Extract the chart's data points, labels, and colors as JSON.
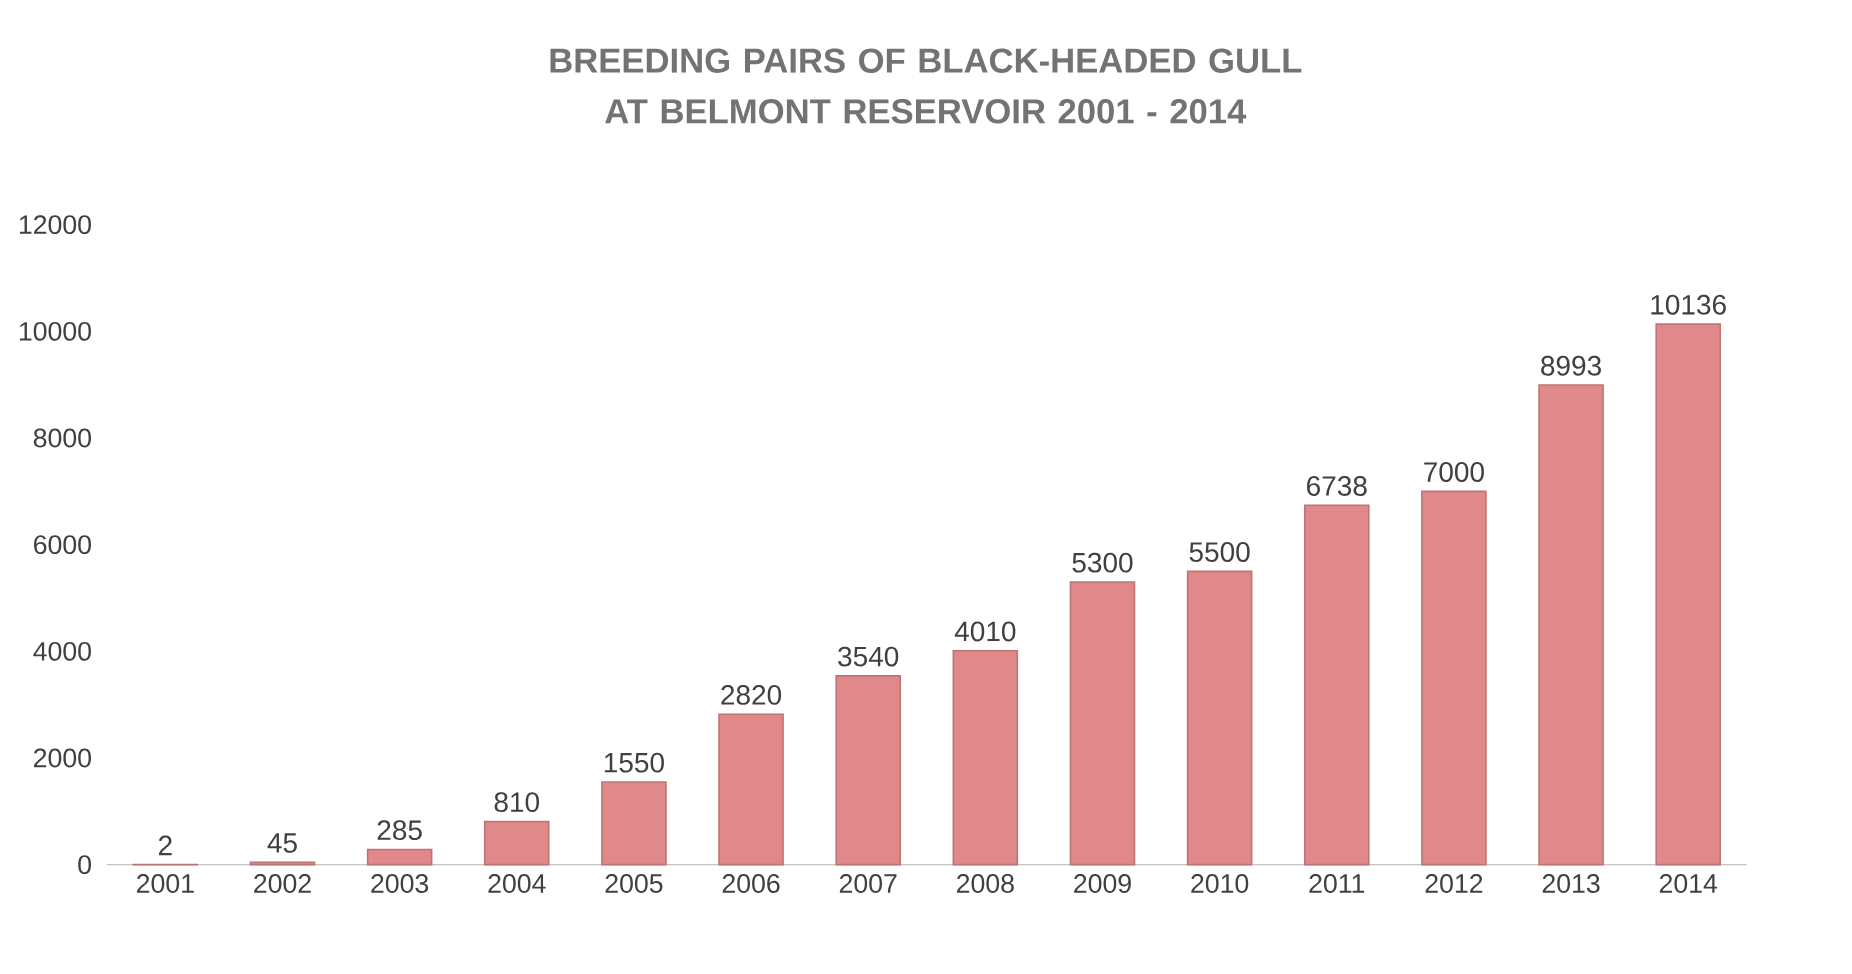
{
  "chart_data": {
    "type": "bar",
    "title": "BREEDING PAIRS OF BLACK-HEADED GULL AT BELMONT RESERVOIR 2001 - 2014",
    "categories": [
      "2001",
      "2002",
      "2003",
      "2004",
      "2005",
      "2006",
      "2007",
      "2008",
      "2009",
      "2010",
      "2011",
      "2012",
      "2013",
      "2014"
    ],
    "values": [
      2,
      45,
      285,
      810,
      1550,
      2820,
      3540,
      4010,
      5300,
      5500,
      6738,
      7000,
      8993,
      10136
    ],
    "color": "#e0888a",
    "ylim": [
      0,
      12000
    ],
    "yticks": [
      0,
      2000,
      4000,
      6000,
      8000,
      10000,
      12000
    ],
    "data_labels": true
  }
}
